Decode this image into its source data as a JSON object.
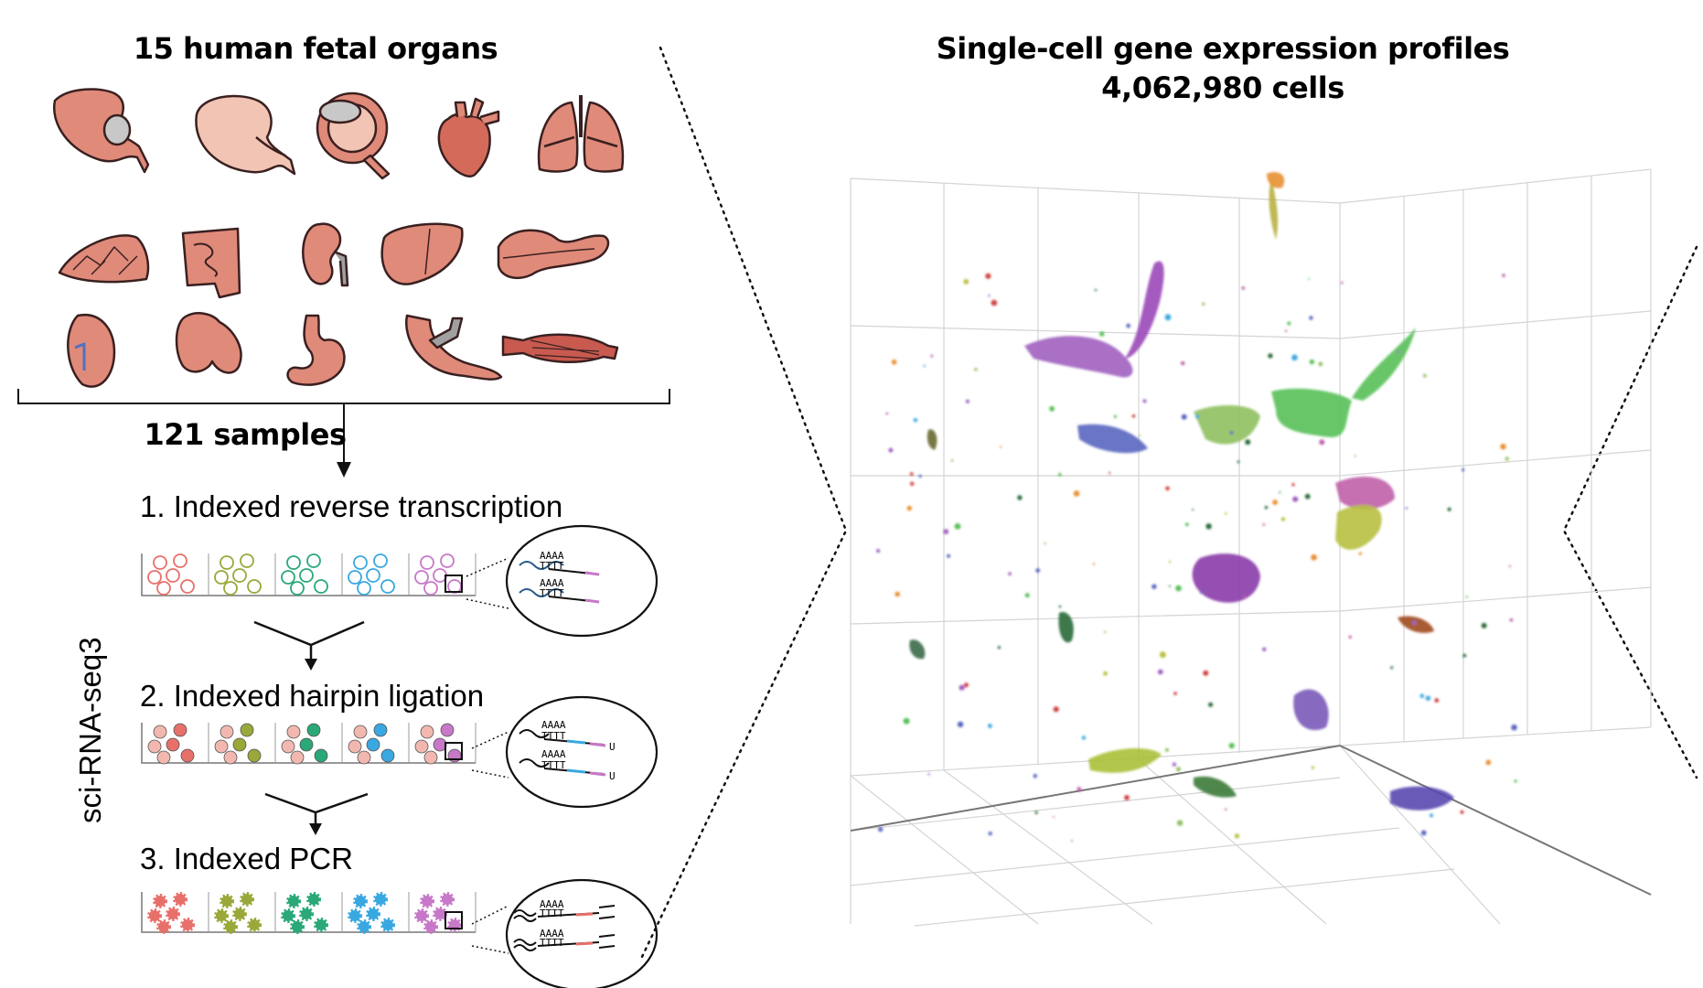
{
  "left_panel": {
    "title": "15 human fetal organs",
    "samples_label": "121 samples",
    "method_label": "sci-RNA-seq3",
    "steps": [
      {
        "label": "1. Indexed reverse transcription"
      },
      {
        "label": "2. Indexed hairpin ligation"
      },
      {
        "label": "3. Indexed PCR"
      }
    ],
    "seq_labels": {
      "polyA": "AAAA",
      "polyT": "TTTT",
      "uracil": "U"
    },
    "organs": [
      "cerebrum",
      "cerebellum",
      "eye",
      "heart",
      "lung",
      "placenta",
      "intestine",
      "kidney",
      "liver",
      "pancreas",
      "spleen",
      "thymus",
      "stomach",
      "adrenal",
      "muscle"
    ],
    "organ_color": "#e08a7a",
    "well_colors": [
      "#e8706a",
      "#9aa83a",
      "#2aa878",
      "#3aa8e0",
      "#c878c8"
    ]
  },
  "right_panel": {
    "title_line1": "Single-cell gene expression profiles",
    "title_line2": "4,062,980 cells"
  },
  "colors": {
    "organ_fill": "#e08a7a",
    "organ_light": "#f2c4b4",
    "organ_stroke": "#3a2020",
    "grid": "#d0d0d0"
  }
}
